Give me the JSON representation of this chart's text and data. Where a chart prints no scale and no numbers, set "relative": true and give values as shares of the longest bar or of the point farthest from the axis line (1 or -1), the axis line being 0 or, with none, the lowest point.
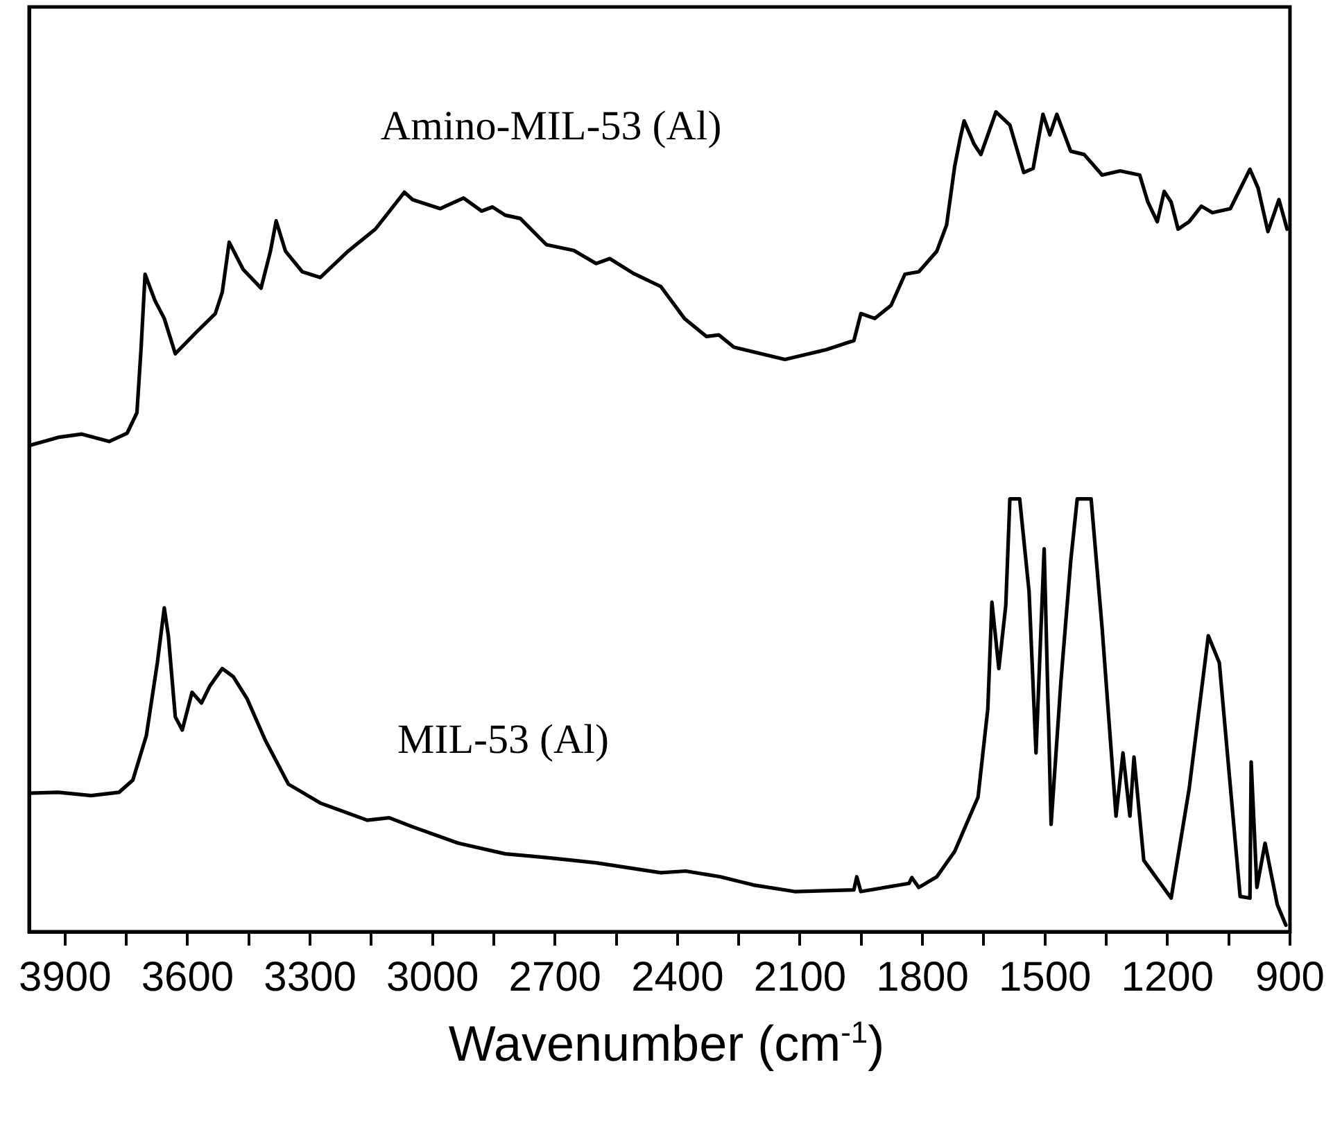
{
  "chart_data": {
    "type": "line",
    "xlabel": "Wavenumber (cm$^{-1}$)",
    "relative": true,
    "tick_labels": "x",
    "xlim": [
      3988,
      900
    ],
    "xticks": [
      3900,
      {
        "value": 3750,
        "label": null
      },
      3600,
      {
        "value": 3450,
        "label": null
      },
      3300,
      {
        "value": 3150,
        "label": null
      },
      3000,
      {
        "value": 2850,
        "label": null
      },
      2700,
      {
        "value": 2550,
        "label": null
      },
      2400,
      {
        "value": 2250,
        "label": null
      },
      2100,
      {
        "value": 1950,
        "label": null
      },
      1800,
      {
        "value": 1650,
        "label": null
      },
      1500,
      {
        "value": 1350,
        "label": null
      },
      1200,
      {
        "value": 1050,
        "label": null
      },
      900
    ],
    "series": [
      {
        "name": "Amino-MIL-53 (Al)",
        "color": "#000000",
        "x": [
          3988,
          3917,
          3859,
          3792,
          3748,
          3724,
          3714,
          3704,
          3680,
          3657,
          3630,
          3579,
          3532,
          3515,
          3498,
          3464,
          3420,
          3397,
          3383,
          3360,
          3319,
          3275,
          3207,
          3140,
          3069,
          3049,
          2981,
          2924,
          2880,
          2853,
          2822,
          2785,
          2721,
          2654,
          2599,
          2566,
          2508,
          2441,
          2383,
          2329,
          2299,
          2262,
          2137,
          2035,
          1968,
          1951,
          1917,
          1877,
          1843,
          1809,
          1765,
          1741,
          1721,
          1708,
          1698,
          1674,
          1657,
          1620,
          1586,
          1552,
          1529,
          1505,
          1488,
          1471,
          1437,
          1404,
          1360,
          1316,
          1268,
          1248,
          1225,
          1208,
          1191,
          1174,
          1147,
          1117,
          1090,
          1046,
          998,
          978,
          954,
          927,
          907
        ],
        "values": [
          0.593,
          0.603,
          0.607,
          0.598,
          0.608,
          0.633,
          0.71,
          0.802,
          0.77,
          0.748,
          0.705,
          0.731,
          0.754,
          0.78,
          0.841,
          0.808,
          0.785,
          0.83,
          0.867,
          0.83,
          0.805,
          0.798,
          0.83,
          0.857,
          0.902,
          0.893,
          0.882,
          0.895,
          0.879,
          0.884,
          0.874,
          0.87,
          0.838,
          0.831,
          0.815,
          0.821,
          0.803,
          0.787,
          0.748,
          0.726,
          0.728,
          0.713,
          0.698,
          0.71,
          0.721,
          0.754,
          0.748,
          0.764,
          0.802,
          0.805,
          0.83,
          0.862,
          0.934,
          0.967,
          0.989,
          0.961,
          0.948,
          1,
          0.984,
          0.926,
          0.931,
          0.997,
          0.972,
          0.997,
          0.952,
          0.948,
          0.923,
          0.928,
          0.923,
          0.89,
          0.866,
          0.903,
          0.89,
          0.857,
          0.866,
          0.885,
          0.877,
          0.882,
          0.93,
          0.907,
          0.854,
          0.893,
          0.857
        ]
      },
      {
        "name": "MIL-53 (Al)",
        "color": "#000000",
        "x": [
          3988,
          3917,
          3836,
          3768,
          3734,
          3701,
          3674,
          3657,
          3647,
          3630,
          3613,
          3589,
          3566,
          3545,
          3515,
          3488,
          3454,
          3410,
          3353,
          3275,
          3160,
          3106,
          3049,
          2937,
          2822,
          2711,
          2599,
          2441,
          2380,
          2295,
          2214,
          2113,
          1968,
          1961,
          1951,
          1833,
          1826,
          1809,
          1765,
          1721,
          1691,
          1664,
          1640,
          1630,
          1613,
          1596,
          1586,
          1562,
          1539,
          1522,
          1502,
          1485,
          1461,
          1437,
          1421,
          1387,
          1360,
          1326,
          1309,
          1292,
          1282,
          1258,
          1191,
          1147,
          1100,
          1073,
          1022,
          998,
          995,
          981,
          961,
          931,
          910
        ],
        "values": [
          0.169,
          0.17,
          0.166,
          0.17,
          0.185,
          0.239,
          0.328,
          0.395,
          0.361,
          0.262,
          0.246,
          0.292,
          0.279,
          0.3,
          0.321,
          0.311,
          0.284,
          0.234,
          0.18,
          0.157,
          0.136,
          0.139,
          0.128,
          0.108,
          0.095,
          0.09,
          0.084,
          0.072,
          0.074,
          0.067,
          0.057,
          0.049,
          0.051,
          0.067,
          0.049,
          0.059,
          0.066,
          0.054,
          0.067,
          0.098,
          0.133,
          0.164,
          0.272,
          0.402,
          0.321,
          0.398,
          0.528,
          0.528,
          0.415,
          0.218,
          0.467,
          0.131,
          0.305,
          0.452,
          0.528,
          0.528,
          0.37,
          0.141,
          0.218,
          0.141,
          0.213,
          0.087,
          0.041,
          0.174,
          0.361,
          0.328,
          0.043,
          0.041,
          0.207,
          0.054,
          0.108,
          0.033,
          0.008
        ]
      }
    ]
  }
}
